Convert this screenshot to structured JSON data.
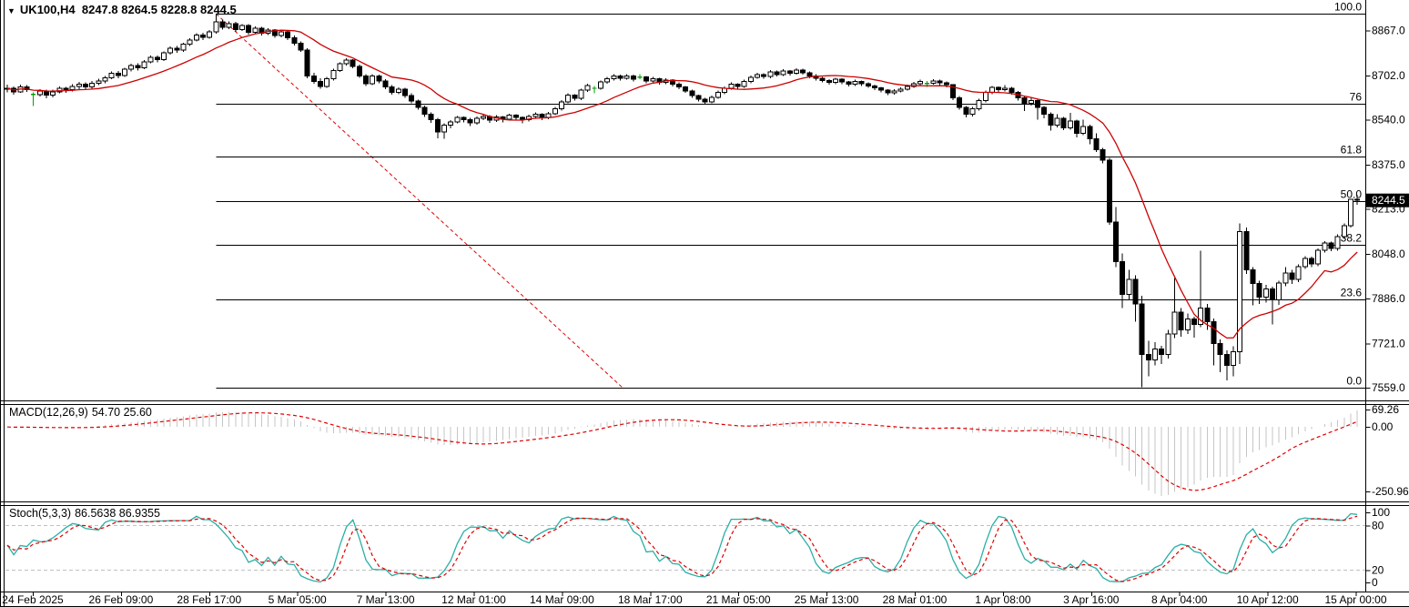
{
  "title": {
    "symbol": "UK100,H4",
    "ohlc": "8247.8 8264.5 8228.8 8244.5"
  },
  "price_axis": {
    "ticks": [
      "8867.0",
      "8702.0",
      "8540.0",
      "8375.0",
      "8213.0",
      "8048.0",
      "7886.0",
      "7721.0",
      "7559.0"
    ],
    "current_price": "8244.5",
    "current_box_bg": "#000000",
    "current_box_fg": "#ffffff"
  },
  "time_axis": {
    "labels": [
      "24 Feb 2025",
      "26 Feb 09:00",
      "28 Feb 17:00",
      "5 Mar 05:00",
      "7 Mar 13:00",
      "12 Mar 01:00",
      "14 Mar 09:00",
      "18 Mar 17:00",
      "21 Mar 05:00",
      "25 Mar 13:00",
      "28 Mar 01:00",
      "1 Apr 08:00",
      "3 Apr 16:00",
      "8 Apr 04:00",
      "10 Apr 12:00",
      "15 Apr 00:00"
    ]
  },
  "fibonacci": {
    "levels": [
      {
        "label": "0.0",
        "price": 7559
      },
      {
        "label": "23.6",
        "price": 7882.1
      },
      {
        "label": "38.2",
        "price": 8082.0
      },
      {
        "label": "50.0",
        "price": 8243.5
      },
      {
        "label": "61.8",
        "price": 8405.0
      },
      {
        "label": "76",
        "price": 8599.4
      },
      {
        "label": "100.0",
        "price": 8928
      }
    ],
    "trendline": {
      "from_price": 8928,
      "to_price": 7559,
      "color": "#e00000"
    },
    "line_color": "#000000"
  },
  "indicators": {
    "ma": {
      "color": "#cc0000"
    },
    "macd": {
      "label": "MACD(12,26,9)",
      "values": "54.70 25.60",
      "axis_labels": [
        "69.26",
        "0.00",
        "-250.96"
      ],
      "histogram_color": "#c6c6c6",
      "signal_color": "#e00000"
    },
    "stoch": {
      "label": "Stoch(5,3,3)",
      "values": "86.5638 86.9355",
      "axis_labels": [
        "100",
        "80",
        "20",
        "0"
      ],
      "level_lines": [
        80,
        20
      ],
      "main_color": "#2aaFa6",
      "signal_color": "#e00000"
    }
  },
  "colors": {
    "background": "#ffffff",
    "up_candle": "#ffffff",
    "down_candle": "#000000",
    "candle_outline": "#000000",
    "doji": "#00a000",
    "frame": "#000000",
    "level_dash": "#c0c0c0"
  },
  "chart_data": {
    "type": "candlestick",
    "symbol": "UK100",
    "timeframe": "H4",
    "last_bar": {
      "open": 8247.8,
      "high": 8264.5,
      "low": 8228.8,
      "close": 8244.5
    },
    "fib_range": {
      "high": 8928,
      "low": 7559
    },
    "candles": [
      [
        8652,
        8668,
        8640,
        8655
      ],
      [
        8655,
        8662,
        8632,
        8642
      ],
      [
        8642,
        8668,
        8638,
        8660
      ],
      [
        8660,
        8666,
        8642,
        8650
      ],
      [
        8632,
        8640,
        8590,
        8632
      ],
      [
        8632,
        8652,
        8625,
        8645
      ],
      [
        8645,
        8650,
        8618,
        8630
      ],
      [
        8630,
        8650,
        8622,
        8642
      ],
      [
        8642,
        8662,
        8636,
        8655
      ],
      [
        8655,
        8660,
        8638,
        8650
      ],
      [
        8650,
        8670,
        8644,
        8662
      ],
      [
        8662,
        8678,
        8652,
        8670
      ],
      [
        8670,
        8676,
        8648,
        8660
      ],
      [
        8660,
        8682,
        8654,
        8674
      ],
      [
        8674,
        8690,
        8666,
        8682
      ],
      [
        8682,
        8700,
        8674,
        8694
      ],
      [
        8694,
        8716,
        8688,
        8710
      ],
      [
        8710,
        8718,
        8692,
        8702
      ],
      [
        8702,
        8730,
        8696,
        8724
      ],
      [
        8724,
        8744,
        8716,
        8738
      ],
      [
        8738,
        8746,
        8720,
        8730
      ],
      [
        8730,
        8758,
        8724,
        8752
      ],
      [
        8752,
        8774,
        8746,
        8768
      ],
      [
        8768,
        8775,
        8750,
        8760
      ],
      [
        8760,
        8790,
        8754,
        8784
      ],
      [
        8784,
        8808,
        8778,
        8802
      ],
      [
        8802,
        8810,
        8784,
        8794
      ],
      [
        8794,
        8822,
        8788,
        8816
      ],
      [
        8816,
        8838,
        8810,
        8832
      ],
      [
        8832,
        8856,
        8826,
        8850
      ],
      [
        8850,
        8858,
        8832,
        8842
      ],
      [
        8842,
        8868,
        8836,
        8862
      ],
      [
        8862,
        8928,
        8855,
        8898
      ],
      [
        8898,
        8905,
        8870,
        8878
      ],
      [
        8878,
        8900,
        8872,
        8892
      ],
      [
        8892,
        8898,
        8862,
        8870
      ],
      [
        8870,
        8890,
        8864,
        8884
      ],
      [
        8884,
        8890,
        8852,
        8860
      ],
      [
        8860,
        8882,
        8854,
        8875
      ],
      [
        8875,
        8880,
        8848,
        8856
      ],
      [
        8856,
        8874,
        8850,
        8868
      ],
      [
        8868,
        8872,
        8840,
        8848
      ],
      [
        8848,
        8868,
        8842,
        8862
      ],
      [
        8862,
        8866,
        8832,
        8840
      ],
      [
        8840,
        8848,
        8812,
        8820
      ],
      [
        8820,
        8826,
        8788,
        8795
      ],
      [
        8795,
        8802,
        8692,
        8700
      ],
      [
        8700,
        8712,
        8672,
        8680
      ],
      [
        8680,
        8692,
        8654,
        8662
      ],
      [
        8662,
        8696,
        8656,
        8690
      ],
      [
        8690,
        8726,
        8684,
        8720
      ],
      [
        8720,
        8750,
        8714,
        8745
      ],
      [
        8745,
        8764,
        8738,
        8758
      ],
      [
        8758,
        8762,
        8728,
        8735
      ],
      [
        8735,
        8742,
        8694,
        8700
      ],
      [
        8700,
        8706,
        8664,
        8672
      ],
      [
        8672,
        8706,
        8666,
        8700
      ],
      [
        8700,
        8704,
        8674,
        8682
      ],
      [
        8682,
        8688,
        8652,
        8660
      ],
      [
        8660,
        8666,
        8632,
        8640
      ],
      [
        8640,
        8658,
        8634,
        8652
      ],
      [
        8652,
        8656,
        8620,
        8628
      ],
      [
        8628,
        8636,
        8600,
        8608
      ],
      [
        8608,
        8614,
        8576,
        8585
      ],
      [
        8585,
        8592,
        8550,
        8560
      ],
      [
        8560,
        8566,
        8528,
        8540
      ],
      [
        8540,
        8546,
        8472,
        8495
      ],
      [
        8495,
        8526,
        8470,
        8520
      ],
      [
        8520,
        8538,
        8508,
        8532
      ],
      [
        8532,
        8554,
        8526,
        8548
      ],
      [
        8548,
        8552,
        8530,
        8540
      ],
      [
        8540,
        8546,
        8516,
        8528
      ],
      [
        8528,
        8551,
        8522,
        8545
      ],
      [
        8545,
        8558,
        8538,
        8552
      ],
      [
        8552,
        8556,
        8528,
        8538
      ],
      [
        8538,
        8556,
        8532,
        8550
      ],
      [
        8550,
        8554,
        8530,
        8542
      ],
      [
        8542,
        8562,
        8536,
        8556
      ],
      [
        8556,
        8560,
        8538,
        8548
      ],
      [
        8548,
        8552,
        8526,
        8540
      ],
      [
        8540,
        8558,
        8534,
        8552
      ],
      [
        8552,
        8566,
        8546,
        8560
      ],
      [
        8560,
        8564,
        8538,
        8548
      ],
      [
        8548,
        8568,
        8542,
        8562
      ],
      [
        8562,
        8586,
        8556,
        8580
      ],
      [
        8580,
        8611,
        8574,
        8605
      ],
      [
        8605,
        8636,
        8600,
        8630
      ],
      [
        8630,
        8634,
        8610,
        8618
      ],
      [
        8618,
        8654,
        8612,
        8648
      ],
      [
        8648,
        8671,
        8642,
        8665
      ],
      [
        8655,
        8664,
        8636,
        8655
      ],
      [
        8655,
        8684,
        8650,
        8678
      ],
      [
        8678,
        8696,
        8672,
        8690
      ],
      [
        8690,
        8706,
        8684,
        8700
      ],
      [
        8700,
        8704,
        8684,
        8692
      ],
      [
        8692,
        8706,
        8686,
        8700
      ],
      [
        8700,
        8705,
        8680,
        8688
      ],
      [
        8696,
        8706,
        8688,
        8696
      ],
      [
        8696,
        8700,
        8674,
        8682
      ],
      [
        8682,
        8696,
        8676,
        8690
      ],
      [
        8690,
        8694,
        8668,
        8676
      ],
      [
        8676,
        8691,
        8670,
        8685
      ],
      [
        8685,
        8688,
        8662,
        8670
      ],
      [
        8670,
        8676,
        8652,
        8660
      ],
      [
        8660,
        8664,
        8638,
        8645
      ],
      [
        8645,
        8650,
        8620,
        8628
      ],
      [
        8628,
        8632,
        8606,
        8615
      ],
      [
        8615,
        8620,
        8596,
        8605
      ],
      [
        8605,
        8628,
        8600,
        8622
      ],
      [
        8622,
        8646,
        8616,
        8640
      ],
      [
        8640,
        8661,
        8634,
        8655
      ],
      [
        8655,
        8676,
        8650,
        8670
      ],
      [
        8670,
        8674,
        8654,
        8662
      ],
      [
        8662,
        8686,
        8656,
        8680
      ],
      [
        8680,
        8701,
        8674,
        8695
      ],
      [
        8695,
        8711,
        8690,
        8705
      ],
      [
        8705,
        8710,
        8690,
        8698
      ],
      [
        8698,
        8721,
        8692,
        8715
      ],
      [
        8715,
        8720,
        8698,
        8705
      ],
      [
        8705,
        8724,
        8700,
        8718
      ],
      [
        8718,
        8722,
        8702,
        8710
      ],
      [
        8710,
        8728,
        8704,
        8722
      ],
      [
        8722,
        8726,
        8704,
        8712
      ],
      [
        8712,
        8716,
        8692,
        8700
      ],
      [
        8700,
        8706,
        8684,
        8692
      ],
      [
        8692,
        8696,
        8676,
        8684
      ],
      [
        8684,
        8688,
        8668,
        8676
      ],
      [
        8676,
        8694,
        8670,
        8688
      ],
      [
        8688,
        8692,
        8670,
        8678
      ],
      [
        8678,
        8682,
        8662,
        8670
      ],
      [
        8670,
        8686,
        8664,
        8680
      ],
      [
        8680,
        8684,
        8664,
        8672
      ],
      [
        8672,
        8676,
        8656,
        8664
      ],
      [
        8664,
        8668,
        8648,
        8656
      ],
      [
        8656,
        8660,
        8640,
        8648
      ],
      [
        8648,
        8652,
        8630,
        8638
      ],
      [
        8638,
        8651,
        8632,
        8645
      ],
      [
        8645,
        8658,
        8640,
        8652
      ],
      [
        8652,
        8668,
        8646,
        8662
      ],
      [
        8662,
        8678,
        8656,
        8672
      ],
      [
        8672,
        8686,
        8666,
        8680
      ],
      [
        8673,
        8682,
        8660,
        8673
      ],
      [
        8673,
        8688,
        8668,
        8682
      ],
      [
        8682,
        8686,
        8666,
        8675
      ],
      [
        8675,
        8680,
        8658,
        8668
      ],
      [
        8668,
        8670,
        8612,
        8620
      ],
      [
        8620,
        8626,
        8576,
        8585
      ],
      [
        8585,
        8590,
        8548,
        8560
      ],
      [
        8560,
        8586,
        8552,
        8580
      ],
      [
        8580,
        8616,
        8574,
        8610
      ],
      [
        8610,
        8646,
        8604,
        8640
      ],
      [
        8640,
        8664,
        8634,
        8658
      ],
      [
        8658,
        8662,
        8640,
        8650
      ],
      [
        8650,
        8666,
        8644,
        8655
      ],
      [
        8655,
        8660,
        8632,
        8640
      ],
      [
        8640,
        8645,
        8610,
        8620
      ],
      [
        8620,
        8626,
        8572,
        8600
      ],
      [
        8600,
        8622,
        8592,
        8610
      ],
      [
        8610,
        8614,
        8540,
        8585
      ],
      [
        8585,
        8590,
        8545,
        8560
      ],
      [
        8560,
        8566,
        8500,
        8520
      ],
      [
        8520,
        8560,
        8512,
        8545
      ],
      [
        8545,
        8550,
        8502,
        8510
      ],
      [
        8510,
        8565,
        8504,
        8535
      ],
      [
        8535,
        8540,
        8475,
        8490
      ],
      [
        8490,
        8540,
        8484,
        8515
      ],
      [
        8515,
        8522,
        8450,
        8470
      ],
      [
        8470,
        8490,
        8422,
        8430
      ],
      [
        8430,
        8436,
        8380,
        8392
      ],
      [
        8392,
        8400,
        8155,
        8165
      ],
      [
        8165,
        8220,
        8000,
        8020
      ],
      [
        8020,
        8050,
        7850,
        7900
      ],
      [
        7900,
        7990,
        7880,
        7955
      ],
      [
        7955,
        7970,
        7800,
        7865
      ],
      [
        7865,
        7895,
        7560,
        7680
      ],
      [
        7680,
        7730,
        7600,
        7660
      ],
      [
        7660,
        7725,
        7640,
        7700
      ],
      [
        7700,
        7712,
        7645,
        7680
      ],
      [
        7680,
        7770,
        7665,
        7755
      ],
      [
        7755,
        7960,
        7740,
        7835
      ],
      [
        7835,
        7850,
        7745,
        7770
      ],
      [
        7770,
        7830,
        7755,
        7810
      ],
      [
        7810,
        7818,
        7742,
        7790
      ],
      [
        7790,
        8060,
        7780,
        7850
      ],
      [
        7850,
        7865,
        7770,
        7800
      ],
      [
        7800,
        7812,
        7640,
        7720
      ],
      [
        7720,
        7735,
        7615,
        7680
      ],
      [
        7680,
        7695,
        7585,
        7640
      ],
      [
        7640,
        7710,
        7600,
        7690
      ],
      [
        7690,
        8160,
        7645,
        8130
      ],
      [
        8130,
        8145,
        7975,
        7990
      ],
      [
        7990,
        8000,
        7860,
        7940
      ],
      [
        7940,
        7950,
        7865,
        7890
      ],
      [
        7890,
        7935,
        7870,
        7920
      ],
      [
        7920,
        7928,
        7790,
        7880
      ],
      [
        7880,
        7950,
        7862,
        7942
      ],
      [
        7942,
        8000,
        7930,
        7978
      ],
      [
        7978,
        7990,
        7938,
        7955
      ],
      [
        7955,
        8010,
        7946,
        8002
      ],
      [
        8002,
        8040,
        7994,
        8032
      ],
      [
        8032,
        8038,
        8000,
        8012
      ],
      [
        8012,
        8068,
        8004,
        8062
      ],
      [
        8062,
        8096,
        8054,
        8088
      ],
      [
        8088,
        8094,
        8058,
        8068
      ],
      [
        8068,
        8120,
        8060,
        8112
      ],
      [
        8112,
        8160,
        8104,
        8152
      ],
      [
        8152,
        8250,
        8146,
        8248
      ],
      [
        8247.8,
        8264.5,
        8228.8,
        8244.5
      ]
    ]
  }
}
